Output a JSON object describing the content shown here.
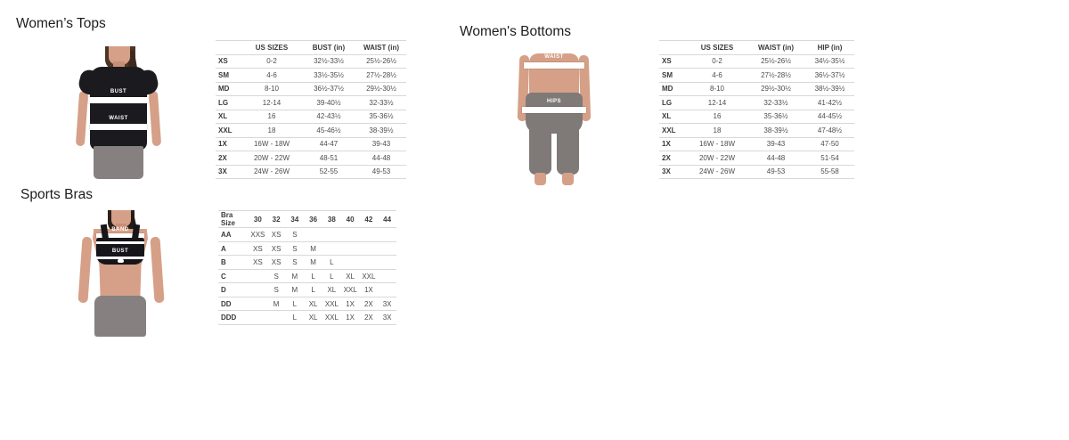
{
  "colors": {
    "page_background": "#ffffff",
    "title_text": "#1d1d1d",
    "table_text": "#4c4c4c",
    "table_line": "#d8d8d8",
    "band_white": "#ffffff",
    "garment_black": "#1b1b1f",
    "leggings_gray": "#868180"
  },
  "tops": {
    "title": "Women’s Tops",
    "figure": {
      "bust_label": "BUST",
      "waist_label": "WAIST"
    },
    "table": {
      "headers": [
        "",
        "US SIZES",
        "BUST (in)",
        "WAIST (in)"
      ],
      "rows": [
        [
          "XS",
          "0-2",
          "32½-33½",
          "25½-26½"
        ],
        [
          "SM",
          "4-6",
          "33½-35½",
          "27½-28½"
        ],
        [
          "MD",
          "8-10",
          "36½-37½",
          "29½-30½"
        ],
        [
          "LG",
          "12-14",
          "39-40½",
          "32-33½"
        ],
        [
          "XL",
          "16",
          "42-43½",
          "35-36½"
        ],
        [
          "XXL",
          "18",
          "45-46½",
          "38-39½"
        ],
        [
          "1X",
          "16W - 18W",
          "44-47",
          "39-43"
        ],
        [
          "2X",
          "20W - 22W",
          "48-51",
          "44-48"
        ],
        [
          "3X",
          "24W - 26W",
          "52-55",
          "49-53"
        ]
      ]
    }
  },
  "bottoms": {
    "title": "Women's Bottoms",
    "figure": {
      "waist_label": "WAIST",
      "hips_label": "HIPS"
    },
    "table": {
      "headers": [
        "",
        "US SIZES",
        "WAIST (in)",
        "HIP (in)"
      ],
      "rows": [
        [
          "XS",
          "0-2",
          "25½-26½",
          "34½-35½"
        ],
        [
          "SM",
          "4-6",
          "27½-28½",
          "36½-37½"
        ],
        [
          "MD",
          "8-10",
          "29½-30½",
          "38½-39½"
        ],
        [
          "LG",
          "12-14",
          "32-33½",
          "41-42½"
        ],
        [
          "XL",
          "16",
          "35-36½",
          "44-45½"
        ],
        [
          "XXL",
          "18",
          "38-39½",
          "47-48½"
        ],
        [
          "1X",
          "16W - 18W",
          "39-43",
          "47-50"
        ],
        [
          "2X",
          "20W - 22W",
          "44-48",
          "51-54"
        ],
        [
          "3X",
          "24W - 26W",
          "49-53",
          "55-58"
        ]
      ]
    }
  },
  "bras": {
    "title": "Sports Bras",
    "figure": {
      "band_label": "BAND",
      "bust_label": "BUST"
    },
    "table": {
      "headers": [
        "Bra Size",
        "30",
        "32",
        "34",
        "36",
        "38",
        "40",
        "42",
        "44"
      ],
      "rows": [
        [
          "AA",
          "XXS",
          "XS",
          "S",
          "",
          "",
          "",
          "",
          ""
        ],
        [
          "A",
          "XS",
          "XS",
          "S",
          "M",
          "",
          "",
          "",
          ""
        ],
        [
          "B",
          "XS",
          "XS",
          "S",
          "M",
          "L",
          "",
          "",
          ""
        ],
        [
          "C",
          "",
          "S",
          "M",
          "L",
          "L",
          "XL",
          "XXL",
          ""
        ],
        [
          "D",
          "",
          "S",
          "M",
          "L",
          "XL",
          "XXL",
          "1X",
          ""
        ],
        [
          "DD",
          "",
          "M",
          "L",
          "XL",
          "XXL",
          "1X",
          "2X",
          "3X"
        ],
        [
          "DDD",
          "",
          "",
          "L",
          "XL",
          "XXL",
          "1X",
          "2X",
          "3X"
        ]
      ]
    }
  }
}
